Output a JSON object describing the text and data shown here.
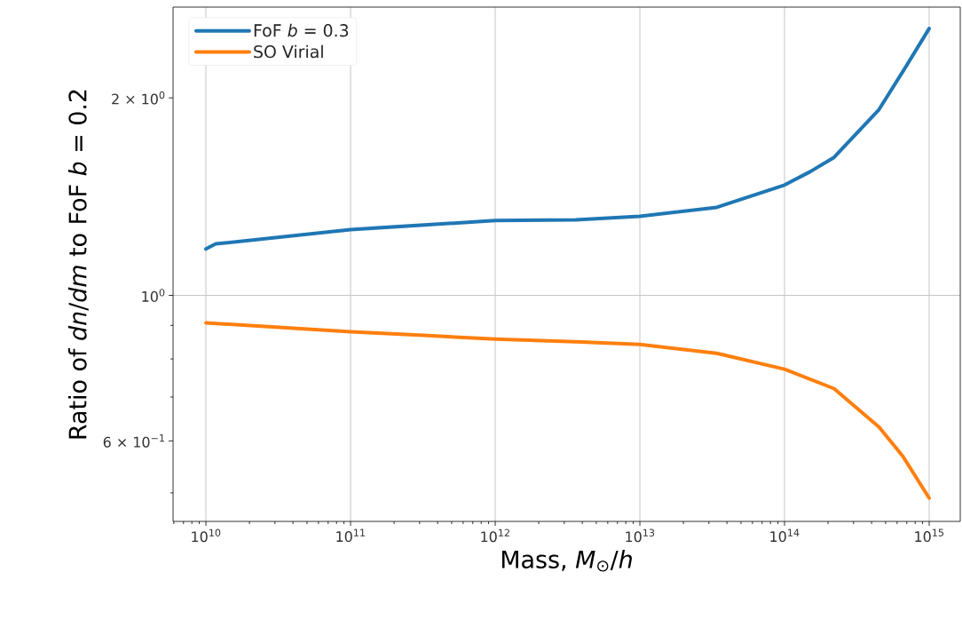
{
  "chart_data": {
    "type": "line",
    "xlabel": "Mass, *M*$_{⊙}$/*h*",
    "ylabel": "Ratio of *dn*/*dm* to FoF *b* = 0.2",
    "log": "xy",
    "grid": true,
    "legend": "top left",
    "xlim": [
      5930000000.0,
      1640000000000000.0
    ],
    "ylim": [
      0.4524,
      2.75
    ],
    "xticks": [
      {
        "value": 10000000000.0,
        "label": "10$^{10}$"
      },
      {
        "value": 100000000000.0,
        "label": "10$^{11}$"
      },
      {
        "value": 1000000000000.0,
        "label": "10$^{12}$"
      },
      {
        "value": 10000000000000.0,
        "label": "10$^{13}$"
      },
      {
        "value": 100000000000000.0,
        "label": "10$^{14}$"
      },
      {
        "value": 1000000000000000.0,
        "label": "10$^{15}$"
      },
      {
        "value": 6000000000.0,
        "label": null
      },
      {
        "value": 7000000000.0,
        "label": null
      },
      {
        "value": 8000000000.0,
        "label": null
      },
      {
        "value": 9000000000.0,
        "label": null
      },
      {
        "value": 20000000000.0,
        "label": null
      },
      {
        "value": 30000000000.0,
        "label": null
      },
      {
        "value": 40000000000.0,
        "label": null
      },
      {
        "value": 50000000000.0,
        "label": null
      },
      {
        "value": 60000000000.0,
        "label": null
      },
      {
        "value": 70000000000.0,
        "label": null
      },
      {
        "value": 80000000000.0,
        "label": null
      },
      {
        "value": 90000000000.0,
        "label": null
      },
      {
        "value": 200000000000.0,
        "label": null
      },
      {
        "value": 300000000000.0,
        "label": null
      },
      {
        "value": 400000000000.0,
        "label": null
      },
      {
        "value": 500000000000.0,
        "label": null
      },
      {
        "value": 600000000000.0,
        "label": null
      },
      {
        "value": 700000000000.0,
        "label": null
      },
      {
        "value": 800000000000.0,
        "label": null
      },
      {
        "value": 900000000000.0,
        "label": null
      },
      {
        "value": 2000000000000.0,
        "label": null
      },
      {
        "value": 3000000000000.0,
        "label": null
      },
      {
        "value": 4000000000000.0,
        "label": null
      },
      {
        "value": 5000000000000.0,
        "label": null
      },
      {
        "value": 6000000000000.0,
        "label": null
      },
      {
        "value": 7000000000000.0,
        "label": null
      },
      {
        "value": 8000000000000.0,
        "label": null
      },
      {
        "value": 9000000000000.0,
        "label": null
      },
      {
        "value": 20000000000000.0,
        "label": null
      },
      {
        "value": 30000000000000.0,
        "label": null
      },
      {
        "value": 40000000000000.0,
        "label": null
      },
      {
        "value": 50000000000000.0,
        "label": null
      },
      {
        "value": 60000000000000.0,
        "label": null
      },
      {
        "value": 70000000000000.0,
        "label": null
      },
      {
        "value": 80000000000000.0,
        "label": null
      },
      {
        "value": 90000000000000.0,
        "label": null
      },
      {
        "value": 200000000000000.0,
        "label": null
      },
      {
        "value": 300000000000000.0,
        "label": null
      },
      {
        "value": 400000000000000.0,
        "label": null
      },
      {
        "value": 500000000000000.0,
        "label": null
      },
      {
        "value": 600000000000000.0,
        "label": null
      },
      {
        "value": 700000000000000.0,
        "label": null
      },
      {
        "value": 800000000000000.0,
        "label": null
      },
      {
        "value": 900000000000000.0,
        "label": null
      }
    ],
    "yticks": [
      {
        "value": 0.6,
        "label": "6 × 10$^{−1}$"
      },
      {
        "value": 1,
        "label": "10$^{0}$"
      },
      {
        "value": 2,
        "label": "2 × 10$^{0}$"
      },
      {
        "value": 0.5,
        "label": null
      },
      {
        "value": 0.7,
        "label": null
      },
      {
        "value": 0.8,
        "label": null
      },
      {
        "value": 0.9,
        "label": null
      }
    ],
    "series": [
      {
        "name": "FoF *b* = 0.3",
        "color": "#1f77b4",
        "x": [
          10000000000.0,
          11700000000.0,
          100000000000.0,
          1000000000000.0,
          3600000000000.0,
          10000000000000.0,
          34000000000000.0,
          100000000000000.0,
          150000000000000.0,
          220000000000000.0,
          450000000000000.0,
          660000000000000.0,
          1000000000000000.0
        ],
        "values": [
          1.177,
          1.198,
          1.26,
          1.3,
          1.304,
          1.32,
          1.362,
          1.473,
          1.543,
          1.623,
          1.92,
          2.196,
          2.551
        ]
      },
      {
        "name": "SO Virial",
        "color": "#ff7f0e",
        "x": [
          10000000000.0,
          100000000000.0,
          320000000000.0,
          1000000000000.0,
          3600000000000.0,
          10000000000000.0,
          34000000000000.0,
          100000000000000.0,
          220000000000000.0,
          450000000000000.0,
          660000000000000.0,
          1000000000000000.0
        ],
        "values": [
          0.908,
          0.88,
          0.869,
          0.858,
          0.85,
          0.842,
          0.816,
          0.772,
          0.721,
          0.63,
          0.568,
          0.491
        ]
      }
    ]
  }
}
